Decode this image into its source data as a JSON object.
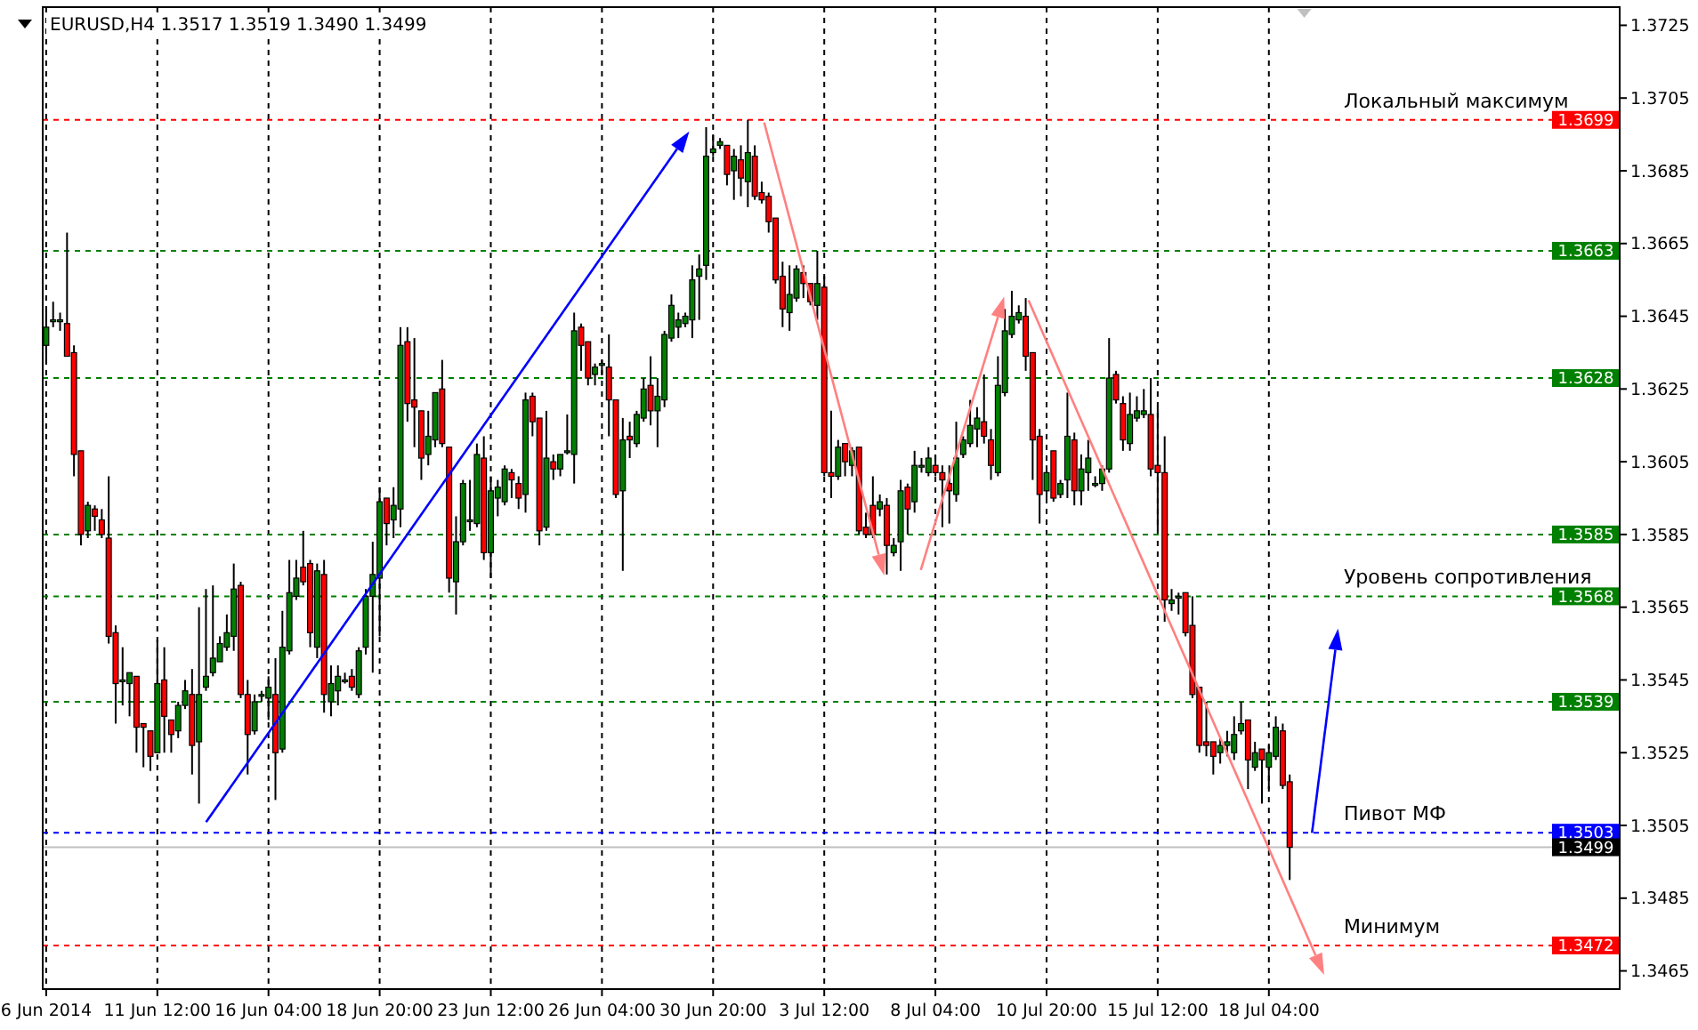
{
  "chart_data": {
    "type": "candlestick",
    "title": "EURUSD,H4 1.3517 1.3519 1.3490 1.3499",
    "categories": [
      "6 Jun 2014",
      null,
      null,
      null,
      null,
      null,
      null,
      null,
      null,
      null,
      null,
      null,
      null,
      null,
      null,
      null,
      "11 Jun 12:00",
      null,
      null,
      null,
      null,
      null,
      null,
      null,
      null,
      null,
      null,
      null,
      null,
      null,
      null,
      null,
      "16 Jun 04:00",
      null,
      null,
      null,
      null,
      null,
      null,
      null,
      null,
      null,
      null,
      null,
      null,
      null,
      null,
      null,
      "18 Jun 20:00",
      null,
      null,
      null,
      null,
      null,
      null,
      null,
      null,
      null,
      null,
      null,
      null,
      null,
      null,
      null,
      "23 Jun 12:00",
      null,
      null,
      null,
      null,
      null,
      null,
      null,
      null,
      null,
      null,
      null,
      null,
      null,
      null,
      null,
      "26 Jun 04:00",
      null,
      null,
      null,
      null,
      null,
      null,
      null,
      null,
      null,
      null,
      null,
      null,
      null,
      null,
      null,
      "30 Jun 20:00",
      null,
      null,
      null,
      null,
      null,
      null,
      null,
      null,
      null,
      null,
      null,
      null,
      null,
      null,
      null,
      "3 Jul 12:00",
      null,
      null,
      null,
      null,
      null,
      null,
      null,
      null,
      null,
      null,
      null,
      null,
      null,
      null,
      null,
      "8 Jul 04:00",
      null,
      null,
      null,
      null,
      null,
      null,
      null,
      null,
      null,
      null,
      null,
      null,
      null,
      null,
      null,
      "10 Jul 20:00",
      null,
      null,
      null,
      null,
      null,
      null,
      null,
      null,
      null,
      null,
      null,
      null,
      null,
      null,
      null,
      "15 Jul 12:00",
      null,
      null,
      null,
      null,
      null,
      null,
      null,
      null,
      null,
      null,
      null,
      null,
      null,
      null,
      null,
      "18 Jul 04:00",
      null,
      null,
      null,
      null,
      null,
      null,
      null,
      null,
      null,
      null,
      null,
      null,
      null,
      null,
      null,
      null,
      null,
      null,
      null,
      null,
      null,
      null,
      null,
      null,
      null,
      null,
      null,
      null,
      null,
      null,
      null,
      null,
      null,
      null,
      null,
      null,
      null,
      null,
      null,
      null,
      null,
      null,
      null,
      null,
      null,
      null,
      null,
      null,
      null,
      null
    ],
    "ohlc": [
      [
        1.3637,
        1.3647,
        1.3632,
        1.3642
      ],
      [
        1.3644,
        1.3649,
        1.3642,
        1.3644
      ],
      [
        1.3644,
        1.3646,
        1.3641,
        1.3644
      ],
      [
        1.3643,
        1.3668,
        1.3634,
        1.3634
      ],
      [
        1.3635,
        1.3637,
        1.3601,
        1.3607
      ],
      [
        1.3608,
        1.3608,
        1.3582,
        1.3585
      ],
      [
        1.3586,
        1.3594,
        1.3584,
        1.3593
      ],
      [
        1.3592,
        1.3593,
        1.3586,
        1.359
      ],
      [
        1.3589,
        1.3592,
        1.3584,
        1.3585
      ],
      [
        1.3584,
        1.3601,
        1.3555,
        1.3557
      ],
      [
        1.3558,
        1.356,
        1.3533,
        1.3544
      ],
      [
        1.3545,
        1.3554,
        1.3538,
        1.3545
      ],
      [
        1.3544,
        1.3547,
        1.3535,
        1.3547
      ],
      [
        1.3546,
        1.3546,
        1.3525,
        1.3532
      ],
      [
        1.3533,
        1.3533,
        1.3521,
        1.3532
      ],
      [
        1.3531,
        1.3531,
        1.352,
        1.3524
      ],
      [
        1.3525,
        1.3556,
        1.3525,
        1.3544
      ],
      [
        1.3545,
        1.3554,
        1.3525,
        1.3535
      ],
      [
        1.3534,
        1.3534,
        1.3525,
        1.353
      ],
      [
        1.3531,
        1.3539,
        1.3529,
        1.3538
      ],
      [
        1.3538,
        1.3545,
        1.3537,
        1.3542
      ],
      [
        1.3541,
        1.3548,
        1.3519,
        1.3527
      ],
      [
        1.3528,
        1.3565,
        1.3511,
        1.3541
      ],
      [
        1.3543,
        1.357,
        1.3542,
        1.3546
      ],
      [
        1.3547,
        1.3571,
        1.3546,
        1.3551
      ],
      [
        1.355,
        1.3557,
        1.355,
        1.3555
      ],
      [
        1.3554,
        1.3563,
        1.3553,
        1.3558
      ],
      [
        1.3557,
        1.3577,
        1.3553,
        1.357
      ],
      [
        1.3571,
        1.3572,
        1.354,
        1.3541
      ],
      [
        1.3541,
        1.3545,
        1.3519,
        1.353
      ],
      [
        1.3531,
        1.3541,
        1.353,
        1.3539
      ],
      [
        1.3541,
        1.3542,
        1.3539,
        1.3541
      ],
      [
        1.354,
        1.3546,
        1.3534,
        1.3543
      ],
      [
        1.3541,
        1.3551,
        1.3512,
        1.3525
      ],
      [
        1.3526,
        1.3564,
        1.3525,
        1.3554
      ],
      [
        1.3553,
        1.3578,
        1.3552,
        1.3569
      ],
      [
        1.3568,
        1.3578,
        1.3567,
        1.3573
      ],
      [
        1.3576,
        1.3586,
        1.3571,
        1.3572
      ],
      [
        1.3577,
        1.3578,
        1.3554,
        1.3558
      ],
      [
        1.3554,
        1.3577,
        1.3551,
        1.3575
      ],
      [
        1.3574,
        1.3578,
        1.3536,
        1.3541
      ],
      [
        1.3539,
        1.3549,
        1.3535,
        1.3544
      ],
      [
        1.3542,
        1.3549,
        1.3538,
        1.3546
      ],
      [
        1.3545,
        1.3547,
        1.3544,
        1.3545
      ],
      [
        1.3546,
        1.3548,
        1.3542,
        1.3543
      ],
      [
        1.3541,
        1.3554,
        1.354,
        1.3553
      ],
      [
        1.3554,
        1.357,
        1.3552,
        1.3568
      ],
      [
        1.3568,
        1.3583,
        1.3547,
        1.3574
      ],
      [
        1.3573,
        1.3598,
        1.3557,
        1.3594
      ],
      [
        1.3595,
        1.3595,
        1.3582,
        1.3588
      ],
      [
        1.3589,
        1.3598,
        1.3584,
        1.3593
      ],
      [
        1.3592,
        1.3642,
        1.3587,
        1.3637
      ],
      [
        1.3638,
        1.3642,
        1.3616,
        1.3621
      ],
      [
        1.3622,
        1.3639,
        1.3609,
        1.362
      ],
      [
        1.3619,
        1.3619,
        1.36,
        1.3606
      ],
      [
        1.3607,
        1.3619,
        1.3604,
        1.3612
      ],
      [
        1.3611,
        1.3624,
        1.3609,
        1.3624
      ],
      [
        1.3625,
        1.3633,
        1.3609,
        1.361
      ],
      [
        1.3609,
        1.3609,
        1.3569,
        1.3573
      ],
      [
        1.3572,
        1.359,
        1.3563,
        1.3583
      ],
      [
        1.3583,
        1.36,
        1.3582,
        1.3599
      ],
      [
        1.3589,
        1.36,
        1.3586,
        1.3589
      ],
      [
        1.3588,
        1.361,
        1.3587,
        1.3607
      ],
      [
        1.3606,
        1.3612,
        1.3578,
        1.358
      ],
      [
        1.358,
        1.3601,
        1.3573,
        1.3597
      ],
      [
        1.3595,
        1.36,
        1.359,
        1.3598
      ],
      [
        1.3594,
        1.3604,
        1.3593,
        1.3603
      ],
      [
        1.3602,
        1.3603,
        1.3595,
        1.36
      ],
      [
        1.3599,
        1.3601,
        1.3592,
        1.3595
      ],
      [
        1.3596,
        1.3624,
        1.3591,
        1.3622
      ],
      [
        1.3623,
        1.3624,
        1.3612,
        1.3616
      ],
      [
        1.3617,
        1.3617,
        1.3582,
        1.3586
      ],
      [
        1.3587,
        1.3619,
        1.3586,
        1.3606
      ],
      [
        1.3605,
        1.3607,
        1.36,
        1.3603
      ],
      [
        1.3603,
        1.3607,
        1.3601,
        1.3607
      ],
      [
        1.3608,
        1.3618,
        1.3607,
        1.3608
      ],
      [
        1.3607,
        1.3646,
        1.3599,
        1.3641
      ],
      [
        1.3642,
        1.3643,
        1.363,
        1.3637
      ],
      [
        1.3638,
        1.3638,
        1.3626,
        1.3628
      ],
      [
        1.3629,
        1.3632,
        1.3626,
        1.3631
      ],
      [
        1.3632,
        1.3633,
        1.3629,
        1.3632
      ],
      [
        1.3631,
        1.364,
        1.3612,
        1.3622
      ],
      [
        1.3622,
        1.3622,
        1.3595,
        1.3596
      ],
      [
        1.3597,
        1.3617,
        1.3575,
        1.3611
      ],
      [
        1.3612,
        1.3616,
        1.3606,
        1.3611
      ],
      [
        1.361,
        1.3619,
        1.3609,
        1.3618
      ],
      [
        1.3617,
        1.3628,
        1.3616,
        1.3625
      ],
      [
        1.3626,
        1.3634,
        1.3615,
        1.3619
      ],
      [
        1.3619,
        1.3628,
        1.3609,
        1.3623
      ],
      [
        1.3622,
        1.3641,
        1.362,
        1.364
      ],
      [
        1.3639,
        1.3651,
        1.3638,
        1.3648
      ],
      [
        1.3642,
        1.3646,
        1.3639,
        1.3644
      ],
      [
        1.3643,
        1.3646,
        1.3642,
        1.3645
      ],
      [
        1.3644,
        1.3659,
        1.3639,
        1.3655
      ],
      [
        1.3656,
        1.3662,
        1.3644,
        1.3658
      ],
      [
        1.3659,
        1.3697,
        1.3655,
        1.3689
      ],
      [
        1.369,
        1.3695,
        1.3689,
        1.3691
      ],
      [
        1.3692,
        1.3694,
        1.3691,
        1.3693
      ],
      [
        1.3692,
        1.3692,
        1.3681,
        1.3684
      ],
      [
        1.3685,
        1.3691,
        1.3677,
        1.3689
      ],
      [
        1.3688,
        1.3692,
        1.3678,
        1.3683
      ],
      [
        1.3682,
        1.3699,
        1.3675,
        1.369
      ],
      [
        1.3689,
        1.3692,
        1.3677,
        1.3678
      ],
      [
        1.3679,
        1.3682,
        1.3676,
        1.3677
      ],
      [
        1.3678,
        1.3679,
        1.3668,
        1.3671
      ],
      [
        1.3672,
        1.3672,
        1.3654,
        1.3655
      ],
      [
        1.3656,
        1.366,
        1.3642,
        1.3647
      ],
      [
        1.3646,
        1.3659,
        1.3641,
        1.3651
      ],
      [
        1.365,
        1.3659,
        1.3649,
        1.3658
      ],
      [
        1.3657,
        1.3659,
        1.365,
        1.3654
      ],
      [
        1.3654,
        1.3654,
        1.3648,
        1.3649
      ],
      [
        1.3648,
        1.3663,
        1.3644,
        1.3654
      ],
      [
        1.3653,
        1.3656,
        1.3601,
        1.3602
      ],
      [
        1.3602,
        1.3619,
        1.3595,
        1.3601
      ],
      [
        1.3601,
        1.3611,
        1.36,
        1.3609
      ],
      [
        1.361,
        1.361,
        1.3601,
        1.3605
      ],
      [
        1.3604,
        1.3609,
        1.3601,
        1.3608
      ],
      [
        1.3609,
        1.3609,
        1.3585,
        1.3586
      ],
      [
        1.3587,
        1.3591,
        1.3584,
        1.3585
      ],
      [
        1.3593,
        1.3601,
        1.3584,
        1.3585
      ],
      [
        1.3592,
        1.3596,
        1.359,
        1.3594
      ],
      [
        1.3593,
        1.3595,
        1.3574,
        1.3582
      ],
      [
        1.358,
        1.3584,
        1.3579,
        1.3582
      ],
      [
        1.3583,
        1.36,
        1.3575,
        1.3597
      ],
      [
        1.3598,
        1.3599,
        1.3585,
        1.3592
      ],
      [
        1.3594,
        1.3608,
        1.3591,
        1.3604
      ],
      [
        1.3604,
        1.3606,
        1.3602,
        1.3604
      ],
      [
        1.3602,
        1.3609,
        1.3601,
        1.3606
      ],
      [
        1.3604,
        1.3607,
        1.3601,
        1.3602
      ],
      [
        1.3602,
        1.3604,
        1.3587,
        1.36
      ],
      [
        1.3599,
        1.3604,
        1.3588,
        1.3597
      ],
      [
        1.3596,
        1.3616,
        1.3594,
        1.3606
      ],
      [
        1.3607,
        1.3612,
        1.3606,
        1.3611
      ],
      [
        1.361,
        1.3622,
        1.3609,
        1.3615
      ],
      [
        1.3614,
        1.362,
        1.3609,
        1.3617
      ],
      [
        1.3616,
        1.3629,
        1.361,
        1.3612
      ],
      [
        1.3611,
        1.3614,
        1.36,
        1.3604
      ],
      [
        1.3602,
        1.3634,
        1.3601,
        1.3626
      ],
      [
        1.3624,
        1.3647,
        1.3623,
        1.3641
      ],
      [
        1.364,
        1.3652,
        1.3639,
        1.3645
      ],
      [
        1.3644,
        1.3648,
        1.3643,
        1.3646
      ],
      [
        1.3645,
        1.365,
        1.363,
        1.3634
      ],
      [
        1.3635,
        1.3635,
        1.36,
        1.3611
      ],
      [
        1.3612,
        1.3614,
        1.3588,
        1.3596
      ],
      [
        1.3597,
        1.3604,
        1.3595,
        1.3602
      ],
      [
        1.3608,
        1.3608,
        1.3594,
        1.3595
      ],
      [
        1.3596,
        1.36,
        1.3595,
        1.3599
      ],
      [
        1.36,
        1.3624,
        1.3595,
        1.3612
      ],
      [
        1.3611,
        1.3613,
        1.3593,
        1.3597
      ],
      [
        1.3597,
        1.3607,
        1.3593,
        1.3603
      ],
      [
        1.3602,
        1.3611,
        1.3597,
        1.3606
      ],
      [
        1.3599,
        1.3601,
        1.3598,
        1.3599
      ],
      [
        1.3599,
        1.3604,
        1.3597,
        1.3603
      ],
      [
        1.3603,
        1.3639,
        1.3602,
        1.3628
      ],
      [
        1.3629,
        1.363,
        1.3621,
        1.3622
      ],
      [
        1.3621,
        1.3623,
        1.3608,
        1.3611
      ],
      [
        1.361,
        1.3624,
        1.3608,
        1.3618
      ],
      [
        1.3617,
        1.3623,
        1.3616,
        1.3619
      ],
      [
        1.3618,
        1.3625,
        1.3617,
        1.3619
      ],
      [
        1.3618,
        1.3628,
        1.3601,
        1.3603
      ],
      [
        1.3604,
        1.362,
        1.3586,
        1.3602
      ],
      [
        1.3602,
        1.3612,
        1.3561,
        1.3567
      ],
      [
        1.3566,
        1.357,
        1.3564,
        1.3567
      ],
      [
        1.3568,
        1.3569,
        1.3563,
        1.3568
      ],
      [
        1.3569,
        1.3569,
        1.3557,
        1.3558
      ],
      [
        1.356,
        1.3568,
        1.354,
        1.3541
      ],
      [
        1.3543,
        1.3543,
        1.3525,
        1.3527
      ],
      [
        1.3528,
        1.3539,
        1.3524,
        1.3527
      ],
      [
        1.3528,
        1.3528,
        1.3519,
        1.3524
      ],
      [
        1.3525,
        1.3529,
        1.3522,
        1.3527
      ],
      [
        1.3527,
        1.3531,
        1.3524,
        1.3528
      ],
      [
        1.3525,
        1.3535,
        1.3523,
        1.353
      ],
      [
        1.3531,
        1.3539,
        1.353,
        1.3533
      ],
      [
        1.3534,
        1.3534,
        1.3515,
        1.3523
      ],
      [
        1.3521,
        1.3528,
        1.352,
        1.3525
      ],
      [
        1.3526,
        1.3526,
        1.3511,
        1.3523
      ],
      [
        1.3521,
        1.3527,
        1.3515,
        1.3525
      ],
      [
        1.3524,
        1.3535,
        1.3523,
        1.3532
      ],
      [
        1.3531,
        1.3533,
        1.3515,
        1.3516
      ],
      [
        1.3517,
        1.3519,
        1.349,
        1.3499
      ],
      null,
      null,
      null,
      null,
      null,
      null,
      null,
      null,
      null,
      null,
      null,
      null,
      null,
      null,
      null,
      null,
      null,
      null,
      null,
      null,
      null,
      null,
      null,
      null,
      null,
      null,
      null,
      null,
      null,
      null,
      null,
      null,
      null,
      null,
      null,
      null,
      null,
      null,
      null,
      null,
      null,
      null,
      null,
      null,
      null,
      null,
      null
    ],
    "ylim": [
      1.346,
      1.373
    ],
    "yticks": [
      1.3465,
      1.3485,
      1.3505,
      1.3525,
      1.3545,
      1.3565,
      1.3585,
      1.3605,
      1.3625,
      1.3645,
      1.3665,
      1.3685,
      1.3705,
      1.3725
    ],
    "grid": "x",
    "ref_lines": [
      {
        "axis": "y",
        "value": 1.3699,
        "label": "1.3699",
        "color": "#ff0000",
        "line_style": "dashed"
      },
      {
        "axis": "y",
        "value": 1.3663,
        "label": "1.3663",
        "color": "#008000",
        "line_style": "dashed"
      },
      {
        "axis": "y",
        "value": 1.3628,
        "label": "1.3628",
        "color": "#008000",
        "line_style": "dashed"
      },
      {
        "axis": "y",
        "value": 1.3585,
        "label": "1.3585",
        "color": "#008000",
        "line_style": "dashed"
      },
      {
        "axis": "y",
        "value": 1.3568,
        "label": "1.3568",
        "color": "#008000",
        "line_style": "dashed"
      },
      {
        "axis": "y",
        "value": 1.3539,
        "label": "1.3539",
        "color": "#008000",
        "line_style": "dashed"
      },
      {
        "axis": "y",
        "value": 1.3503,
        "label": "1.3503",
        "color": "#0000ff",
        "line_style": "dashed"
      },
      {
        "axis": "y",
        "value": 1.3499,
        "label": "1.3499",
        "color": "#c0c0c0",
        "line_style": "solid"
      },
      {
        "axis": "y",
        "value": 1.3472,
        "label": "1.3472",
        "color": "#ff0000",
        "line_style": "dashed"
      }
    ],
    "annotations": [
      {
        "text": "Локальный максимум",
        "y": 1.3699
      },
      {
        "text": "Уровень сопротивления",
        "y": 1.3568
      },
      {
        "text": "Пивот МФ",
        "y": 1.3503
      },
      {
        "text": "Минимум",
        "y": 1.3472
      }
    ]
  }
}
